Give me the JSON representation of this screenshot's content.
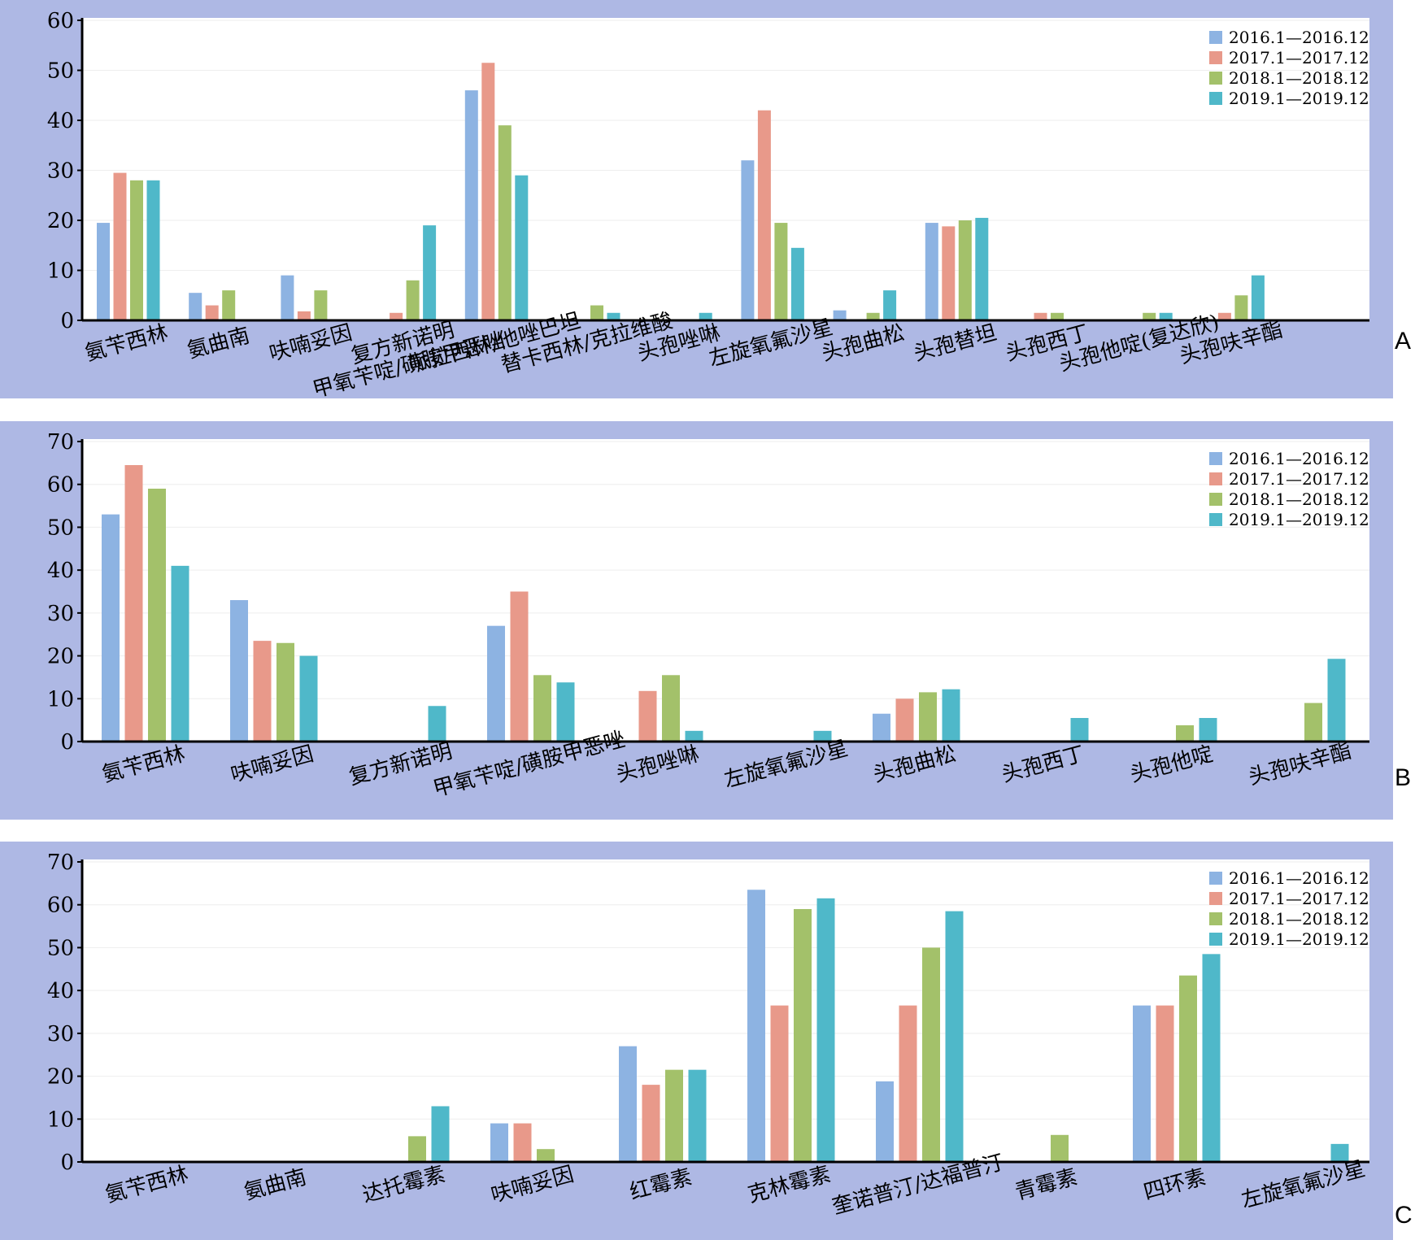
{
  "colors": {
    "s2016": "#8db3e2",
    "s2017": "#e8998a",
    "s2018": "#a3c16a",
    "s2019": "#4fb8c9"
  },
  "panels": [
    {
      "letter": "A",
      "legend": [
        "2016.1—2016.12",
        "2017.1—2017.12",
        "2018.1—2018.12",
        "2019.1—2019.12"
      ],
      "chart_data": {
        "type": "bar",
        "ylim": [
          0,
          60
        ],
        "yticks": [
          "0",
          "10",
          "20",
          "30",
          "40",
          "50",
          "60"
        ],
        "categories": [
          "氨苄西林",
          "氨曲南",
          "呋喃妥因",
          "复方新诺明\n甲氧苄啶/磺胺甲恶唑",
          "哌拉西林/他唑巴坦",
          "替卡西林/克拉维酸",
          "头孢唑啉",
          "左旋氧氟沙星",
          "头孢曲松",
          "头孢替坦",
          "头孢西丁",
          "头孢他啶(复达欣)",
          "头孢呋辛酯"
        ],
        "series": [
          {
            "name": "2016.1—2016.12",
            "values": [
              19.5,
              5.5,
              9,
              0,
              46,
              0,
              0,
              32,
              2,
              19.5,
              0,
              0,
              0
            ]
          },
          {
            "name": "2017.1—2017.12",
            "values": [
              29.5,
              3,
              1.8,
              1.5,
              51.5,
              0,
              0,
              42,
              0,
              18.8,
              1.5,
              0,
              1.5
            ]
          },
          {
            "name": "2018.1—2018.12",
            "values": [
              28,
              6,
              6,
              8,
              39,
              3,
              0,
              19.5,
              1.5,
              20,
              1.5,
              1.5,
              5
            ]
          },
          {
            "name": "2019.1—2019.12",
            "values": [
              28,
              0,
              0,
              19,
              29,
              1.5,
              1.5,
              14.5,
              6,
              20.5,
              0,
              1.5,
              9
            ]
          }
        ]
      }
    },
    {
      "letter": "B",
      "legend": [
        "2016.1—2016.12",
        "2017.1—2017.12",
        "2018.1—2018.12",
        "2019.1—2019.12"
      ],
      "chart_data": {
        "type": "bar",
        "ylim": [
          0,
          70
        ],
        "yticks": [
          "0",
          "10",
          "20",
          "30",
          "40",
          "50",
          "60",
          "70"
        ],
        "categories": [
          "氨苄西林",
          "呋喃妥因",
          "复方新诺明",
          "甲氧苄啶/磺胺甲恶唑",
          "头孢唑啉",
          "左旋氧氟沙星",
          "头孢曲松",
          "头孢西丁",
          "头孢他啶",
          "头孢呋辛酯"
        ],
        "series": [
          {
            "name": "2016.1—2016.12",
            "values": [
              53,
              33,
              0,
              27,
              0,
              0,
              6.5,
              0,
              0,
              0
            ]
          },
          {
            "name": "2017.1—2017.12",
            "values": [
              64.5,
              23.5,
              0,
              35,
              11.8,
              0,
              10,
              0,
              0,
              0
            ]
          },
          {
            "name": "2018.1—2018.12",
            "values": [
              59,
              23,
              0,
              15.5,
              15.5,
              0,
              11.5,
              0,
              3.8,
              9
            ]
          },
          {
            "name": "2019.1—2019.12",
            "values": [
              41,
              20,
              8.3,
              13.8,
              2.5,
              2.5,
              12.2,
              5.5,
              5.5,
              19.3
            ]
          }
        ]
      }
    },
    {
      "letter": "C",
      "legend": [
        "2016.1—2016.12",
        "2017.1—2017.12",
        "2018.1—2018.12",
        "2019.1—2019.12"
      ],
      "chart_data": {
        "type": "bar",
        "ylim": [
          0,
          70
        ],
        "yticks": [
          "0",
          "10",
          "20",
          "30",
          "40",
          "50",
          "60",
          "70"
        ],
        "categories": [
          "氨苄西林",
          "氨曲南",
          "达托霉素",
          "呋喃妥因",
          "红霉素",
          "克林霉素",
          "奎诺普汀/达福普汀",
          "青霉素",
          "四环素",
          "左旋氧氟沙星"
        ],
        "series": [
          {
            "name": "2016.1—2016.12",
            "values": [
              0,
              0,
              0,
              9,
              27,
              63.5,
              18.8,
              0,
              36.5,
              0
            ]
          },
          {
            "name": "2017.1—2017.12",
            "values": [
              0,
              0,
              0,
              9,
              18,
              36.5,
              36.5,
              0,
              36.5,
              0
            ]
          },
          {
            "name": "2018.1—2018.12",
            "values": [
              0,
              0,
              6,
              3,
              21.5,
              59,
              50,
              6.3,
              43.5,
              0
            ]
          },
          {
            "name": "2019.1—2019.12",
            "values": [
              0,
              0,
              13,
              0,
              21.5,
              61.5,
              58.5,
              0,
              48.5,
              4.2
            ]
          }
        ]
      }
    }
  ]
}
